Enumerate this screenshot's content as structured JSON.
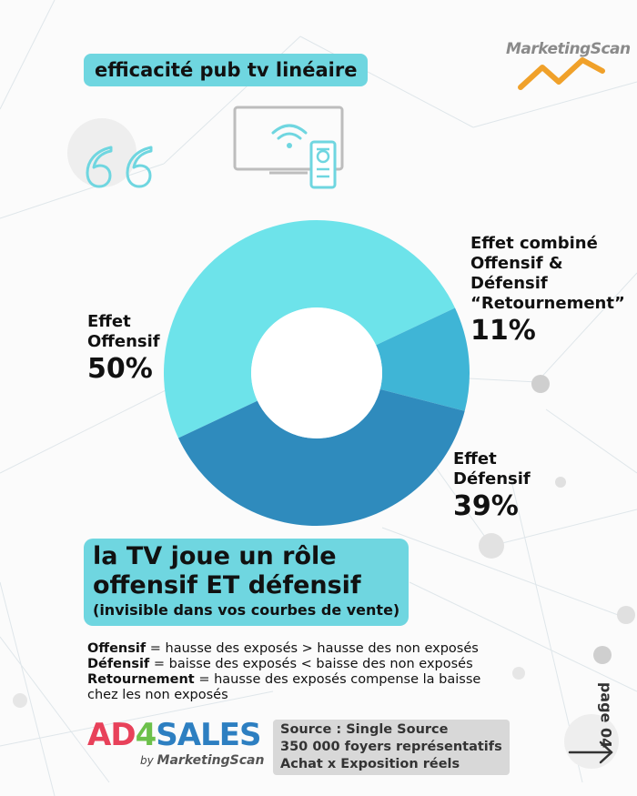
{
  "brand": {
    "name": "MarketingScan"
  },
  "header": {
    "title": "efficacité pub tv linéaire"
  },
  "icons": {
    "tv": "tv-remote-icon",
    "quote": "quote-icon",
    "arrow": "arrow-right-icon"
  },
  "chart_data": {
    "type": "pie",
    "title": "",
    "slices": [
      {
        "label_lines": [
          "Effet",
          "Offensif"
        ],
        "value": 50,
        "display": "50%",
        "color": "#6de3ea"
      },
      {
        "label_lines": [
          "Effet combiné",
          "Offensif & Défensif",
          "“Retournement”"
        ],
        "value": 11,
        "display": "11%",
        "color": "#3fb5d6"
      },
      {
        "label_lines": [
          "Effet",
          "Défensif"
        ],
        "value": 39,
        "display": "39%",
        "color": "#2f8bbd"
      }
    ]
  },
  "headline": {
    "line1": "la TV joue un rôle",
    "line2": "offensif ET défensif",
    "line3": "(invisible dans vos courbes de vente)"
  },
  "definitions": [
    {
      "term": "Offensif",
      "text": " = hausse des exposés > hausse des non exposés"
    },
    {
      "term": "Défensif",
      "text": " = baisse des exposés < baisse des non exposés"
    },
    {
      "term": "Retournement",
      "text": " = hausse des exposés compense la baisse chez les non exposés"
    }
  ],
  "footer": {
    "logo_main": "AD4SALES",
    "logo_by": "by",
    "logo_brand": "MarketingScan",
    "source_lines": [
      "Source : Single Source",
      "350 000 foyers représentatifs",
      "Achat x Exposition réels"
    ],
    "page_label": "page 04"
  },
  "colors": {
    "accent": "#6fd6e0",
    "logo_red": "#e8415a",
    "logo_blue": "#2d7fc1",
    "logo_green": "#6cc04a",
    "brand_orange": "#f0a12a"
  }
}
